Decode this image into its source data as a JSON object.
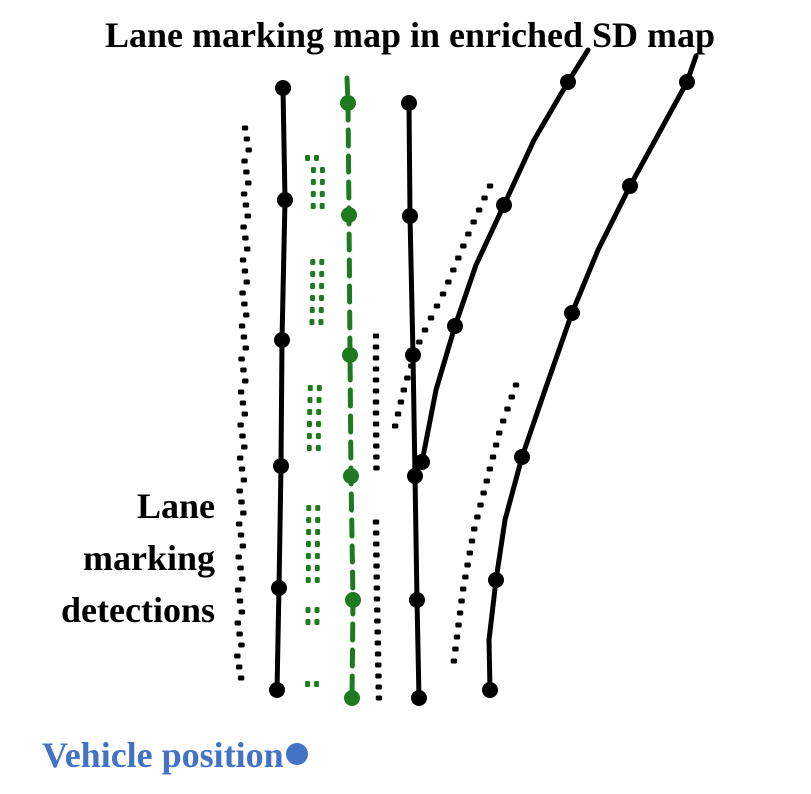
{
  "title": "Lane marking map in enriched SD map",
  "detections_label": [
    "Lane",
    "marking",
    "detections"
  ],
  "vehicle_label": "Vehicle position",
  "colors": {
    "map_line": "#000000",
    "ego_lane": "#1e7a1e",
    "detection_black": "#000000",
    "detection_green": "#1e7a1e",
    "vehicle": "#4472c4"
  },
  "legend_icon": "vehicle-position-dot"
}
